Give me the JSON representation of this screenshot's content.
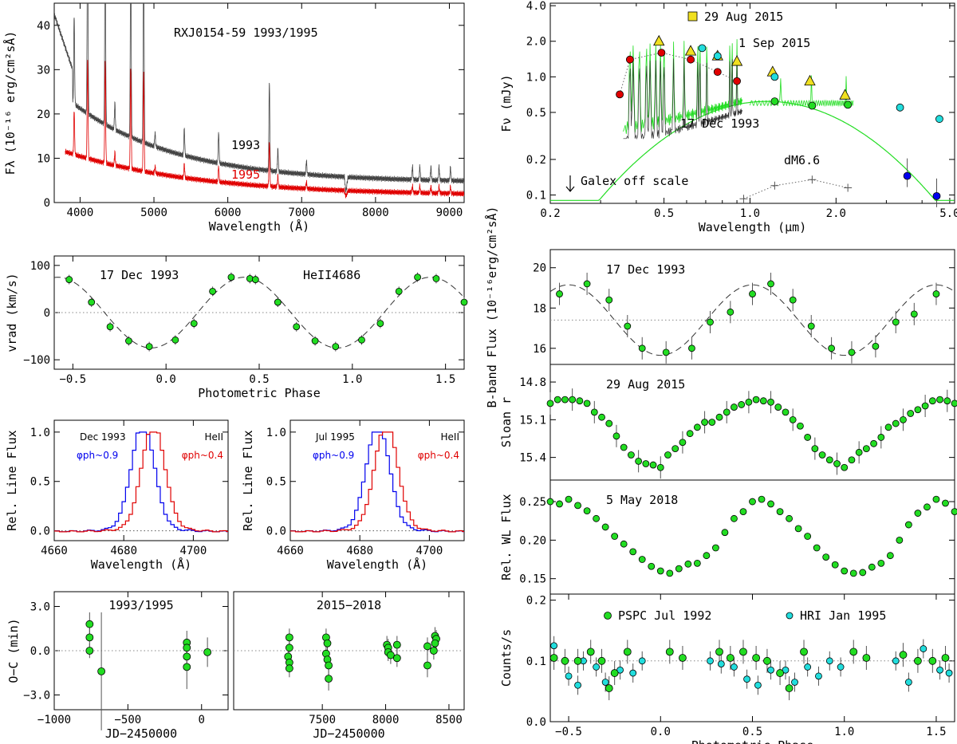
{
  "colors": {
    "green": "#22dd22",
    "red": "#e00000",
    "cyan": "#22dddd",
    "blue": "#0000ee",
    "yellow": "#f0e020",
    "gray": "#444444"
  },
  "chart_data": [
    {
      "id": "spec",
      "type": "line",
      "title": "RXJ0154-59 1993/1995",
      "xlabel": "Wavelength (Å)",
      "ylabel": "Fλ (10⁻¹⁶ erg/cm²sÅ)",
      "xlim": [
        3650,
        9200
      ],
      "ylim": [
        0,
        45
      ],
      "xticks": [
        "4000",
        "5000",
        "6000",
        "7000",
        "8000",
        "9000"
      ],
      "yticks": [
        "0",
        "10",
        "20",
        "30",
        "40"
      ],
      "series": [
        {
          "name": "1993",
          "color": "#444444"
        },
        {
          "name": "1995",
          "color": "#e00000"
        }
      ],
      "lines": [
        [
          3920,
          20
        ],
        [
          4102,
          45
        ],
        [
          4340,
          45
        ],
        [
          4471,
          6
        ],
        [
          4686,
          45
        ],
        [
          4861,
          45
        ],
        [
          5015,
          3
        ],
        [
          5411,
          6
        ],
        [
          5876,
          7
        ],
        [
          6563,
          20
        ],
        [
          6678,
          5
        ],
        [
          7065,
          3
        ],
        [
          8500,
          3
        ],
        [
          8600,
          3
        ],
        [
          8750,
          3
        ],
        [
          8860,
          3
        ],
        [
          9015,
          3
        ]
      ]
    },
    {
      "id": "sed",
      "type": "scatter",
      "title": "",
      "xlabel": "Wavelength (μm)",
      "ylabel": "Fν (mJy)",
      "xlim": [
        0.2,
        5.2
      ],
      "ylim": [
        0.085,
        4.2
      ],
      "log": true,
      "xticks": [
        "0.2",
        "0.5",
        "1.0",
        "2.0",
        "5.0"
      ],
      "yticks": [
        "0.1",
        "0.2",
        "0.5",
        "1.0",
        "2.0",
        "4.0"
      ],
      "yellow_tri": [
        [
          0.48,
          2.0
        ],
        [
          0.62,
          1.65
        ],
        [
          0.77,
          1.5
        ],
        [
          0.9,
          1.35
        ],
        [
          1.2,
          1.1
        ],
        [
          1.62,
          0.92
        ],
        [
          2.15,
          0.7
        ]
      ],
      "red": [
        [
          0.35,
          0.71
        ],
        [
          0.38,
          1.4
        ],
        [
          0.49,
          1.6
        ],
        [
          0.62,
          1.4
        ],
        [
          0.77,
          1.1
        ],
        [
          0.9,
          0.92
        ]
      ],
      "cyan": [
        [
          0.68,
          1.75
        ],
        [
          0.77,
          1.5
        ],
        [
          1.22,
          1.0
        ],
        [
          3.35,
          0.55
        ],
        [
          4.6,
          0.44
        ]
      ],
      "green": [
        [
          1.22,
          0.62
        ],
        [
          1.65,
          0.57
        ],
        [
          2.2,
          0.58
        ]
      ],
      "blue": [
        [
          3.55,
          0.145
        ],
        [
          4.5,
          0.098
        ]
      ],
      "dm66": [
        [
          0.95,
          0.093
        ],
        [
          1.22,
          0.12
        ],
        [
          1.65,
          0.135
        ],
        [
          2.2,
          0.115
        ]
      ],
      "labels": {
        "aug": "29 Aug 2015",
        "sep": "1 Sep 2015",
        "dec": "17 Dec 1993",
        "dm": "dM6.6",
        "galex": "Galex off scale"
      }
    },
    {
      "id": "vrad",
      "type": "scatter",
      "title": "17 Dec 1993",
      "label2": "HeII4686",
      "xlabel": "Photometric Phase",
      "ylabel": "vrad (km/s)",
      "xlim": [
        -0.6,
        1.6
      ],
      "ylim": [
        -120,
        120
      ],
      "xticks": [
        "−0.5",
        "0.0",
        "0.5",
        "1.0",
        "1.5"
      ],
      "yticks": [
        "−100",
        "0",
        "100"
      ],
      "x": [
        -0.52,
        -0.4,
        -0.3,
        -0.2,
        -0.09,
        0.05,
        0.15,
        0.25,
        0.35,
        0.45,
        0.6
      ],
      "y": [
        70,
        22,
        -30,
        -60,
        -72,
        -58,
        -23,
        45,
        75,
        72,
        22
      ]
    },
    {
      "id": "lp1",
      "type": "line",
      "title": "Dec 1993",
      "line": "HeII",
      "xlabel": "Wavelength (Å)",
      "ylabel": "Rel. Line Flux",
      "xlim": [
        4660,
        4710
      ],
      "ylim": [
        -0.1,
        1.12
      ],
      "xticks": [
        "4660",
        "4680",
        "4700"
      ],
      "yticks": [
        "0.0",
        "0.5",
        "1.0"
      ],
      "phase1": "φph~0.9",
      "phase2": "φph~0.4",
      "c1": 4685.5,
      "c2": 4688.5
    },
    {
      "id": "lp2",
      "type": "line",
      "title": "Jul 1995",
      "line": "HeII",
      "xlabel": "Wavelength (Å)",
      "ylabel": "Rel. Line Flux",
      "xlim": [
        4660,
        4710
      ],
      "ylim": [
        -0.1,
        1.12
      ],
      "xticks": [
        "4660",
        "4680",
        "4700"
      ],
      "yticks": [
        "0.0",
        "0.5",
        "1.0"
      ],
      "phase1": "φph~0.9",
      "phase2": "φph~0.4",
      "c1": 4685.2,
      "c2": 4687.6
    },
    {
      "id": "oc1",
      "type": "scatter",
      "title": "1993/1995",
      "xlabel": "JD−2450000",
      "ylabel": "O−C (min)",
      "xlim": [
        -1000,
        180
      ],
      "ylim": [
        -4,
        4
      ],
      "xticks": [
        "−1000",
        "−500",
        "0"
      ],
      "yticks": [
        "−3.0",
        "0.0",
        "3.0"
      ],
      "points": [
        [
          -760,
          1.8,
          0.8
        ],
        [
          -760,
          0.9,
          0.6
        ],
        [
          -760,
          0.0,
          0.5
        ],
        [
          -680,
          -1.4,
          4
        ],
        [
          -100,
          0.55,
          0.8
        ],
        [
          -100,
          0.2,
          0.6
        ],
        [
          -100,
          -0.4,
          0.6
        ],
        [
          -100,
          -1.1,
          1.5
        ],
        [
          40,
          -0.1,
          1
        ]
      ]
    },
    {
      "id": "oc2",
      "type": "scatter",
      "title": "2015−2018",
      "xlabel": "JD−2450000",
      "ylabel": "",
      "xlim": [
        6800,
        8620
      ],
      "ylim": [
        -4,
        4
      ],
      "xticks": [
        "7500",
        "8000",
        "8500"
      ],
      "yticks": [],
      "points": [
        [
          7240,
          0.9,
          0.6
        ],
        [
          7240,
          0.2,
          0.6
        ],
        [
          7230,
          -0.4,
          0.6
        ],
        [
          7240,
          -0.8,
          0.6
        ],
        [
          7240,
          -1.2,
          0.6
        ],
        [
          7530,
          0.9,
          0.6
        ],
        [
          7540,
          0.5,
          0.6
        ],
        [
          7530,
          -0.2,
          0.6
        ],
        [
          7540,
          -0.6,
          0.6
        ],
        [
          7550,
          -1.0,
          0.8
        ],
        [
          7550,
          -1.9,
          0.8
        ],
        [
          8010,
          0.4,
          0.6
        ],
        [
          8020,
          0.2,
          0.6
        ],
        [
          8020,
          -0.1,
          0.6
        ],
        [
          8040,
          -0.3,
          0.6
        ],
        [
          8090,
          0.4,
          0.6
        ],
        [
          8090,
          -0.5,
          0.6
        ],
        [
          8330,
          0.3,
          0.6
        ],
        [
          8330,
          -1.0,
          0.8
        ],
        [
          8390,
          1.0,
          0.6
        ],
        [
          8400,
          0.8,
          0.6
        ],
        [
          8390,
          0.5,
          0.6
        ],
        [
          8380,
          0.0,
          0.6
        ]
      ]
    },
    {
      "id": "bband",
      "type": "scatter",
      "title": "17 Dec 1993",
      "xlabel": "",
      "ylabel": "B-band Flux (10⁻¹⁶erg/cm²sÅ)",
      "xlim": [
        -0.6,
        1.6
      ],
      "ylim": [
        15.2,
        20.9
      ],
      "xticks": [],
      "yticks": [
        "16",
        "18",
        "20"
      ],
      "x": [
        -0.55,
        -0.4,
        -0.28,
        -0.18,
        -0.1,
        0.03,
        0.17,
        0.27,
        0.38,
        0.5,
        0.6,
        0.72,
        0.82,
        0.93,
        1.04,
        1.17,
        1.28,
        1.38,
        1.5
      ],
      "y": [
        18.7,
        19.2,
        18.4,
        17.1,
        16.0,
        15.8,
        16.0,
        17.3,
        17.8,
        18.7,
        19.2,
        18.4,
        17.1,
        16.0,
        15.8,
        16.1,
        17.3,
        17.7,
        18.7
      ],
      "mean": 17.4
    },
    {
      "id": "sloan",
      "type": "scatter",
      "title": "29 Aug 2015",
      "xlabel": "",
      "ylabel": "Sloan r",
      "xlim": [
        -0.6,
        1.6
      ],
      "ylim": [
        15.58,
        14.66
      ],
      "xticks": [],
      "yticks": [
        "14.8",
        "15.1",
        "15.4"
      ],
      "x": [
        -0.6,
        -0.56,
        -0.52,
        -0.48,
        -0.44,
        -0.4,
        -0.36,
        -0.32,
        -0.28,
        -0.24,
        -0.2,
        -0.16,
        -0.12,
        -0.08,
        -0.04,
        0.0,
        0.04,
        0.08,
        0.12,
        0.16,
        0.2,
        0.24,
        0.28,
        0.32,
        0.36,
        0.4,
        0.44,
        0.48,
        0.52,
        0.56,
        0.6,
        0.64,
        0.68,
        0.72,
        0.76,
        0.8,
        0.84,
        0.88,
        0.92,
        0.96,
        1.0,
        1.04,
        1.08,
        1.12,
        1.16,
        1.2,
        1.24,
        1.28,
        1.32,
        1.36,
        1.4,
        1.44,
        1.48,
        1.52,
        1.56,
        1.6
      ],
      "y": [
        14.97,
        14.94,
        14.94,
        14.94,
        14.95,
        14.97,
        15.04,
        15.08,
        15.13,
        15.23,
        15.32,
        15.38,
        15.43,
        15.45,
        15.46,
        15.48,
        15.38,
        15.33,
        15.28,
        15.21,
        15.16,
        15.12,
        15.12,
        15.08,
        15.04,
        15.0,
        14.98,
        14.96,
        14.94,
        14.95,
        14.96,
        15.0,
        15.04,
        15.1,
        15.15,
        15.24,
        15.33,
        15.38,
        15.42,
        15.45,
        15.48,
        15.42,
        15.36,
        15.33,
        15.29,
        15.24,
        15.16,
        15.13,
        15.1,
        15.05,
        15.02,
        14.99,
        14.95,
        14.94,
        14.95,
        14.97
      ]
    },
    {
      "id": "wl",
      "type": "scatter",
      "title": "5 May 2018",
      "xlabel": "",
      "ylabel": "Rel. WL Flux",
      "xlim": [
        -0.6,
        1.6
      ],
      "ylim": [
        0.13,
        0.278
      ],
      "xticks": [],
      "yticks": [
        "0.15",
        "0.20",
        "0.25"
      ],
      "x": [
        -0.6,
        -0.55,
        -0.5,
        -0.45,
        -0.4,
        -0.35,
        -0.3,
        -0.25,
        -0.2,
        -0.15,
        -0.1,
        -0.05,
        0.0,
        0.05,
        0.1,
        0.15,
        0.2,
        0.25,
        0.3,
        0.35,
        0.4,
        0.45,
        0.5,
        0.55,
        0.6,
        0.65,
        0.7,
        0.75,
        0.8,
        0.85,
        0.9,
        0.95,
        1.0,
        1.05,
        1.1,
        1.15,
        1.2,
        1.25,
        1.3,
        1.35,
        1.4,
        1.45,
        1.5,
        1.55,
        1.6
      ],
      "y": [
        0.25,
        0.247,
        0.253,
        0.245,
        0.238,
        0.228,
        0.217,
        0.205,
        0.195,
        0.185,
        0.175,
        0.166,
        0.16,
        0.157,
        0.163,
        0.169,
        0.17,
        0.18,
        0.19,
        0.21,
        0.228,
        0.237,
        0.25,
        0.253,
        0.247,
        0.237,
        0.228,
        0.215,
        0.205,
        0.19,
        0.178,
        0.168,
        0.16,
        0.157,
        0.158,
        0.165,
        0.17,
        0.18,
        0.2,
        0.22,
        0.235,
        0.243,
        0.253,
        0.248,
        0.237
      ]
    },
    {
      "id": "xray",
      "type": "scatter",
      "title": "",
      "xlabel": "Photometric Phase",
      "ylabel": "Counts/s",
      "xlim": [
        -0.6,
        1.6
      ],
      "ylim": [
        0,
        0.21
      ],
      "xticks": [
        "−0.5",
        "0.0",
        "0.5",
        "1.0",
        "1.5"
      ],
      "yticks": [
        "0.0",
        "0.1",
        "0.2"
      ],
      "legend": {
        "pspc": "PSPC Jul 1992",
        "hri": "HRI Jan 1995"
      },
      "pspc": [
        [
          -0.58,
          0.105
        ],
        [
          -0.52,
          0.1
        ],
        [
          -0.45,
          0.1
        ],
        [
          -0.38,
          0.115
        ],
        [
          -0.32,
          0.1
        ],
        [
          -0.28,
          0.055
        ],
        [
          -0.25,
          0.08
        ],
        [
          -0.18,
          0.115
        ],
        [
          0.05,
          0.115
        ],
        [
          0.12,
          0.105
        ],
        [
          0.32,
          0.115
        ],
        [
          0.38,
          0.105
        ],
        [
          0.45,
          0.115
        ],
        [
          0.52,
          0.105
        ],
        [
          0.58,
          0.1
        ],
        [
          0.65,
          0.08
        ],
        [
          0.7,
          0.055
        ],
        [
          0.78,
          0.115
        ],
        [
          1.05,
          0.115
        ],
        [
          1.12,
          0.105
        ],
        [
          1.32,
          0.11
        ],
        [
          1.4,
          0.1
        ],
        [
          1.48,
          0.1
        ],
        [
          1.55,
          0.105
        ]
      ],
      "hri": [
        [
          -0.58,
          0.125
        ],
        [
          -0.5,
          0.075
        ],
        [
          -0.45,
          0.06
        ],
        [
          -0.42,
          0.1
        ],
        [
          -0.35,
          0.09
        ],
        [
          -0.3,
          0.065
        ],
        [
          -0.22,
          0.085
        ],
        [
          -0.15,
          0.08
        ],
        [
          -0.1,
          0.1
        ],
        [
          0.27,
          0.1
        ],
        [
          0.33,
          0.095
        ],
        [
          0.4,
          0.09
        ],
        [
          0.47,
          0.07
        ],
        [
          0.53,
          0.06
        ],
        [
          0.6,
          0.085
        ],
        [
          0.68,
          0.085
        ],
        [
          0.73,
          0.065
        ],
        [
          0.8,
          0.09
        ],
        [
          0.86,
          0.075
        ],
        [
          0.92,
          0.1
        ],
        [
          0.98,
          0.09
        ],
        [
          1.28,
          0.1
        ],
        [
          1.35,
          0.065
        ],
        [
          1.43,
          0.12
        ],
        [
          1.52,
          0.085
        ],
        [
          1.57,
          0.08
        ]
      ]
    }
  ]
}
